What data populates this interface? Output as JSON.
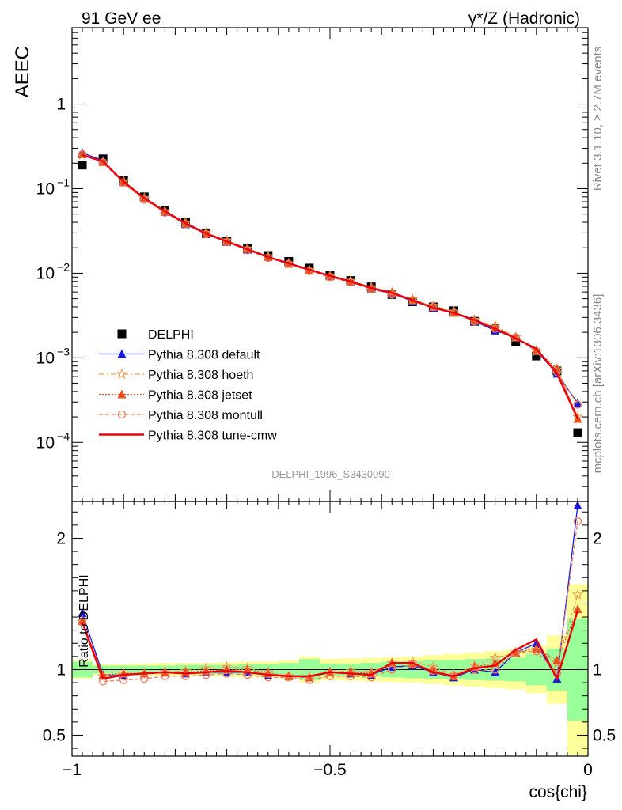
{
  "header": {
    "left": "91 GeV ee",
    "right": "γ*/Z (Hadronic)"
  },
  "side_text": {
    "rivet": "Rivet 3.1.10, ≥ 2.7M events",
    "mcplots": "mcplots.cern.ch [arXiv:1306.3436]"
  },
  "analysis_id": "DELPHI_1996_S3430090",
  "chart_data": [
    {
      "type": "scatter",
      "ylabel": "AEEC",
      "xlabel": "cos{chi}",
      "xlim": [
        -1.0,
        0.0
      ],
      "ylim": [
        2e-05,
        8
      ],
      "yscale": "log",
      "ytick_labels": [
        "1",
        "10^-1",
        "10^-2",
        "10^-3",
        "10^-4"
      ],
      "legend_placement": "lower-left",
      "x": [
        -0.98,
        -0.94,
        -0.9,
        -0.86,
        -0.82,
        -0.78,
        -0.74,
        -0.7,
        -0.66,
        -0.62,
        -0.58,
        -0.54,
        -0.5,
        -0.46,
        -0.42,
        -0.38,
        -0.34,
        -0.3,
        -0.26,
        -0.22,
        -0.18,
        -0.14,
        -0.1,
        -0.06,
        -0.02
      ],
      "series": [
        {
          "name": "DELPHI",
          "color": "#000000",
          "marker": "square",
          "values": [
            0.19,
            0.225,
            0.125,
            0.08,
            0.055,
            0.04,
            0.03,
            0.024,
            0.0195,
            0.0162,
            0.0138,
            0.0115,
            0.0095,
            0.0082,
            0.0069,
            0.0056,
            0.0046,
            0.004,
            0.0036,
            0.0027,
            0.0022,
            0.00155,
            0.00105,
            0.0007,
            0.00013
          ]
        },
        {
          "name": "Pythia 8.308 default",
          "color": "#1a1adc",
          "marker": "triangle",
          "values": [
            0.265,
            0.215,
            0.12,
            0.077,
            0.053,
            0.038,
            0.029,
            0.0235,
            0.019,
            0.0155,
            0.013,
            0.0109,
            0.0092,
            0.0079,
            0.0066,
            0.0057,
            0.0047,
            0.0039,
            0.0034,
            0.0027,
            0.0021,
            0.00175,
            0.0012,
            0.00065,
            0.00029
          ]
        },
        {
          "name": "Pythia 8.308 hoeth",
          "color": "#e6a25c",
          "marker": "star",
          "values": [
            0.25,
            0.205,
            0.122,
            0.077,
            0.054,
            0.0395,
            0.0302,
            0.0244,
            0.0196,
            0.0158,
            0.013,
            0.0108,
            0.0093,
            0.0081,
            0.0068,
            0.0059,
            0.0049,
            0.0041,
            0.0035,
            0.0028,
            0.0024,
            0.00175,
            0.0012,
            0.00073,
            0.0002
          ]
        },
        {
          "name": "Pythia 8.308 jetset",
          "color": "#e8501e",
          "marker": "triangle",
          "values": [
            0.255,
            0.208,
            0.12,
            0.077,
            0.054,
            0.039,
            0.0297,
            0.024,
            0.0195,
            0.0156,
            0.013,
            0.0108,
            0.0093,
            0.008,
            0.0067,
            0.0059,
            0.0048,
            0.004,
            0.0034,
            0.0028,
            0.0023,
            0.00175,
            0.00122,
            0.00075,
            0.00019
          ]
        },
        {
          "name": "Pythia 8.308 montull",
          "color": "#ee7b5a",
          "marker": "circle",
          "values": [
            0.255,
            0.205,
            0.115,
            0.074,
            0.052,
            0.038,
            0.0289,
            0.0233,
            0.0187,
            0.0152,
            0.0129,
            0.0106,
            0.009,
            0.0078,
            0.0065,
            0.0056,
            0.0048,
            0.004,
            0.0034,
            0.0027,
            0.0022,
            0.00175,
            0.0012,
            0.00068,
            0.00028
          ]
        },
        {
          "name": "Pythia 8.308 tune-cmw",
          "color": "#e8000b",
          "marker": "line",
          "values": [
            0.25,
            0.21,
            0.12,
            0.077,
            0.054,
            0.039,
            0.0295,
            0.0237,
            0.0192,
            0.0155,
            0.0131,
            0.011,
            0.0093,
            0.008,
            0.0067,
            0.0059,
            0.0048,
            0.0039,
            0.0034,
            0.0028,
            0.0022,
            0.0017,
            0.00128,
            0.00065,
            0.00019
          ]
        }
      ]
    },
    {
      "type": "line",
      "ylabel": "Ratio to DELPHI",
      "xlabel": "cos{chi}",
      "xlim": [
        -1.0,
        0.0
      ],
      "ylim": [
        0.34,
        2.28
      ],
      "yticks": [
        0.5,
        1,
        2
      ],
      "ytick_labels": [
        "0.5",
        "1",
        "2"
      ],
      "xticks": [
        -1,
        -0.5,
        0
      ],
      "xtick_labels": [
        "−1",
        "−0.5",
        "0"
      ],
      "x": [
        -0.98,
        -0.94,
        -0.9,
        -0.86,
        -0.82,
        -0.78,
        -0.74,
        -0.7,
        -0.66,
        -0.62,
        -0.58,
        -0.54,
        -0.5,
        -0.46,
        -0.42,
        -0.38,
        -0.34,
        -0.3,
        -0.26,
        -0.22,
        -0.18,
        -0.14,
        -0.1,
        -0.06,
        -0.02
      ],
      "band_edges": [
        -1.0,
        -0.96,
        -0.92,
        -0.88,
        -0.84,
        -0.8,
        -0.76,
        -0.72,
        -0.68,
        -0.64,
        -0.6,
        -0.56,
        -0.52,
        -0.48,
        -0.44,
        -0.4,
        -0.36,
        -0.32,
        -0.28,
        -0.24,
        -0.2,
        -0.16,
        -0.12,
        -0.08,
        -0.04,
        0.0
      ],
      "bands": {
        "green_color": "#99ff99",
        "yellow_color": "#ffff99",
        "green_half": [
          0.06,
          0.03,
          0.03,
          0.03,
          0.03,
          0.035,
          0.035,
          0.035,
          0.04,
          0.04,
          0.05,
          0.08,
          0.045,
          0.045,
          0.05,
          0.06,
          0.065,
          0.07,
          0.075,
          0.08,
          0.085,
          0.09,
          0.12,
          0.16,
          0.39
        ],
        "yellow_half": [
          0.07,
          0.04,
          0.04,
          0.045,
          0.05,
          0.05,
          0.05,
          0.055,
          0.06,
          0.06,
          0.07,
          0.1,
          0.08,
          0.085,
          0.09,
          0.095,
          0.1,
          0.11,
          0.12,
          0.13,
          0.14,
          0.15,
          0.18,
          0.26,
          0.65
        ]
      },
      "series": [
        {
          "name": "Pythia 8.308 default",
          "color": "#1a1adc",
          "marker": "triangle",
          "values": [
            1.43,
            0.96,
            0.96,
            0.97,
            0.98,
            0.97,
            0.98,
            0.98,
            0.98,
            0.96,
            0.95,
            0.94,
            0.98,
            0.97,
            0.96,
            1.02,
            1.03,
            0.98,
            0.94,
            1.0,
            0.98,
            1.13,
            1.2,
            0.93,
            2.25
          ]
        },
        {
          "name": "Pythia 8.308 hoeth",
          "color": "#e6a25c",
          "marker": "star",
          "values": [
            1.37,
            0.95,
            0.97,
            0.97,
            0.98,
            0.99,
            1.01,
            1.02,
            1.01,
            0.98,
            0.95,
            0.94,
            0.98,
            0.99,
            0.98,
            1.05,
            1.06,
            1.02,
            0.96,
            1.03,
            1.09,
            1.13,
            1.15,
            1.05,
            1.57
          ]
        },
        {
          "name": "Pythia 8.308 jetset",
          "color": "#e8501e",
          "marker": "triangle",
          "values": [
            1.37,
            0.96,
            0.97,
            0.97,
            0.98,
            0.98,
            0.99,
            1.0,
            1.0,
            0.97,
            0.95,
            0.94,
            0.98,
            0.98,
            0.97,
            1.05,
            1.04,
            1.0,
            0.95,
            1.02,
            1.05,
            1.13,
            1.16,
            1.07,
            1.46
          ]
        },
        {
          "name": "Pythia 8.308 montull",
          "color": "#ee7b5a",
          "marker": "circle",
          "values": [
            1.36,
            0.91,
            0.92,
            0.93,
            0.95,
            0.95,
            0.96,
            0.97,
            0.96,
            0.94,
            0.94,
            0.92,
            0.95,
            0.95,
            0.94,
            1.0,
            1.04,
            0.99,
            0.95,
            1.0,
            1.0,
            1.13,
            1.14,
            0.97,
            2.13
          ]
        },
        {
          "name": "Pythia 8.308 tune-cmw",
          "color": "#e8000b",
          "marker": "line",
          "values": [
            1.36,
            0.93,
            0.96,
            0.97,
            0.98,
            0.97,
            0.98,
            0.99,
            0.98,
            0.96,
            0.95,
            0.95,
            0.98,
            0.97,
            0.96,
            1.05,
            1.05,
            0.98,
            0.95,
            1.01,
            1.03,
            1.15,
            1.23,
            0.93,
            1.45
          ]
        }
      ]
    }
  ]
}
